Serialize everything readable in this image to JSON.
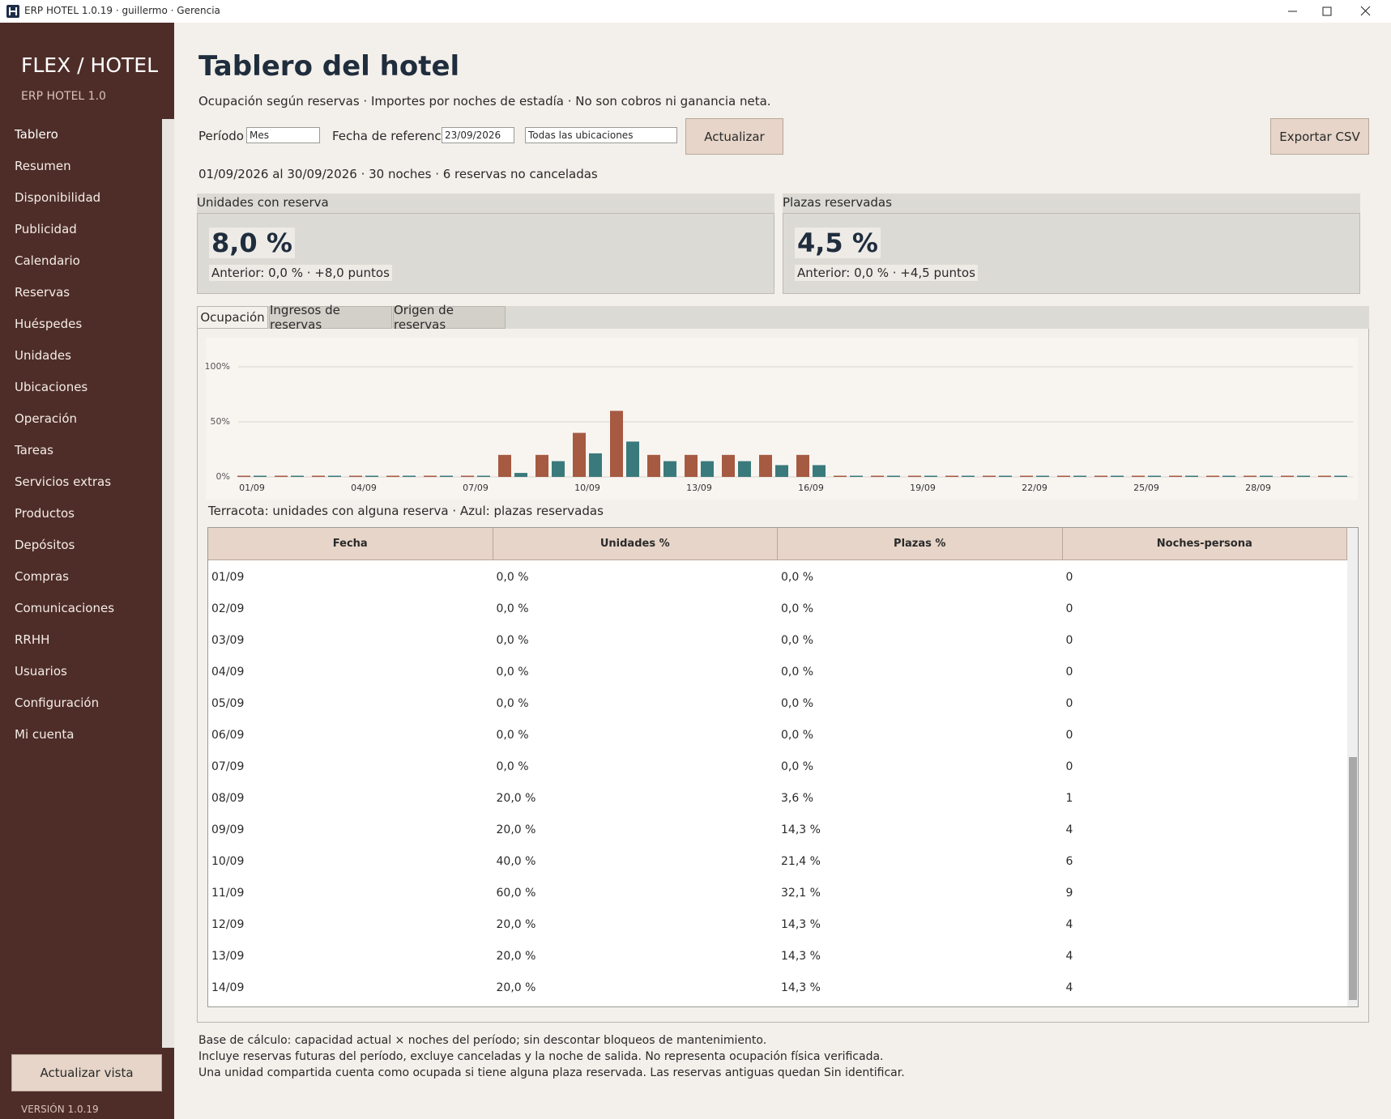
{
  "window": {
    "title": "ERP HOTEL 1.0.19 · guillermo · Gerencia"
  },
  "sidebar": {
    "brand": "FLEX / HOTEL",
    "subtitle": "ERP HOTEL 1.0",
    "items": [
      "Tablero",
      "Resumen",
      "Disponibilidad",
      "Publicidad",
      "Calendario",
      "Reservas",
      "Huéspedes",
      "Unidades",
      "Ubicaciones",
      "Operación",
      "Tareas",
      "Servicios extras",
      "Productos",
      "Depósitos",
      "Compras",
      "Comunicaciones",
      "RRHH",
      "Usuarios",
      "Configuración",
      "Mi cuenta"
    ],
    "refresh_button": "Actualizar vista",
    "version": "VERSIÓN 1.0.19"
  },
  "header": {
    "title": "Tablero del hotel",
    "subtitle": "Ocupación según reservas · Importes por noches de estadía · No son cobros ni ganancia neta."
  },
  "filters": {
    "period_label": "Período",
    "period_value": "Mes",
    "date_label": "Fecha de referencia",
    "date_value": "23/09/2026",
    "location_value": "Todas las ubicaciones",
    "refresh_button": "Actualizar",
    "export_button": "Exportar CSV"
  },
  "range_text": "01/09/2026 al 30/09/2026 · 30 noches · 6 reservas no canceladas",
  "kpis": [
    {
      "label": "Unidades con reserva",
      "value": "8,0 %",
      "detail": "Anterior: 0,0 % · +8,0 puntos"
    },
    {
      "label": "Plazas reservadas",
      "value": "4,5 %",
      "detail": "Anterior: 0,0 % · +4,5 puntos"
    }
  ],
  "tabs": [
    "Ocupación",
    "Ingresos de reservas",
    "Origen de reservas"
  ],
  "chart_data": {
    "type": "bar",
    "categories": [
      "01/09",
      null,
      null,
      "04/09",
      null,
      null,
      "07/09",
      null,
      null,
      "10/09",
      null,
      null,
      "13/09",
      null,
      null,
      "16/09",
      null,
      null,
      "19/09",
      null,
      null,
      "22/09",
      null,
      null,
      "25/09",
      null,
      null,
      "28/09",
      null,
      null
    ],
    "series": [
      {
        "color": "#a65a42",
        "values": [
          0,
          0,
          0,
          0,
          0,
          0,
          0,
          20,
          20,
          40,
          60,
          20,
          20,
          20,
          20,
          20,
          0,
          0,
          0,
          0,
          0,
          0,
          0,
          0,
          0,
          0,
          0,
          0,
          0,
          0
        ]
      },
      {
        "color": "#3a7a7c",
        "values": [
          0,
          0,
          0,
          0,
          0,
          0,
          0,
          3.6,
          14.3,
          21.4,
          32.1,
          14.3,
          14.3,
          14.3,
          10.7,
          10.7,
          0,
          0,
          0,
          0,
          0,
          0,
          0,
          0,
          0,
          0,
          0,
          0,
          0,
          0
        ]
      }
    ],
    "ylim": [
      0,
      100
    ],
    "yticks": [
      {
        "value": 0,
        "label": "0%"
      },
      {
        "value": 50,
        "label": "50%"
      },
      {
        "value": 100,
        "label": "100%"
      }
    ],
    "grid": true,
    "caption": "Terracota: unidades con alguna reserva · Azul: plazas reservadas"
  },
  "table": {
    "columns": [
      "Fecha",
      "Unidades %",
      "Plazas %",
      "Noches-persona"
    ],
    "rows": [
      [
        "01/09",
        "0,0 %",
        "0,0 %",
        0
      ],
      [
        "02/09",
        "0,0 %",
        "0,0 %",
        0
      ],
      [
        "03/09",
        "0,0 %",
        "0,0 %",
        0
      ],
      [
        "04/09",
        "0,0 %",
        "0,0 %",
        0
      ],
      [
        "05/09",
        "0,0 %",
        "0,0 %",
        0
      ],
      [
        "06/09",
        "0,0 %",
        "0,0 %",
        0
      ],
      [
        "07/09",
        "0,0 %",
        "0,0 %",
        0
      ],
      [
        "08/09",
        "20,0 %",
        "3,6 %",
        1
      ],
      [
        "09/09",
        "20,0 %",
        "14,3 %",
        4
      ],
      [
        "10/09",
        "40,0 %",
        "21,4 %",
        6
      ],
      [
        "11/09",
        "60,0 %",
        "32,1 %",
        9
      ],
      [
        "12/09",
        "20,0 %",
        "14,3 %",
        4
      ],
      [
        "13/09",
        "20,0 %",
        "14,3 %",
        4
      ],
      [
        "14/09",
        "20,0 %",
        "14,3 %",
        4
      ]
    ]
  },
  "notes": [
    "Base de cálculo: capacidad actual × noches del período; sin descontar bloqueos de mantenimiento.",
    "Incluye reservas futuras del período, excluye canceladas y la noche de salida. No representa ocupación física verificada.",
    "Una unidad compartida cuenta como ocupada si tiene alguna plaza reservada. Las reservas antiguas quedan Sin identificar."
  ]
}
